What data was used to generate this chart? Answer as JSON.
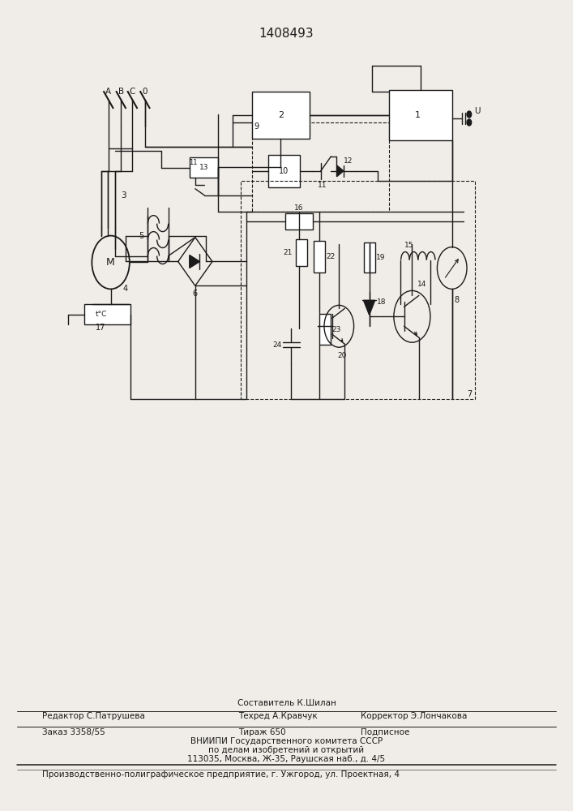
{
  "title": "1408493",
  "bg_color": "#f0ede8",
  "line_color": "#1a1a1a",
  "footer": {
    "line1_compositor": "Составитель К.Шилан",
    "line2_editor": "Редактор С.Патрушева",
    "line2_techred": "Техред А.Кравчук",
    "line2_corrector": "Корректор Э.Лончакова",
    "line3_order": "Заказ 3358/55",
    "line3_tirazh": "Тираж 650",
    "line3_podp": "Подписное",
    "line4": "ВНИИПИ Государственного комитета СССР",
    "line5": "по делам изобретений и открытий",
    "line6": "113035, Москва, Ж-35, Раушская наб., д. 4/5",
    "line7": "Производственно-полиграфическое предприятие, г. Ужгород, ул. Проектная, 4"
  }
}
